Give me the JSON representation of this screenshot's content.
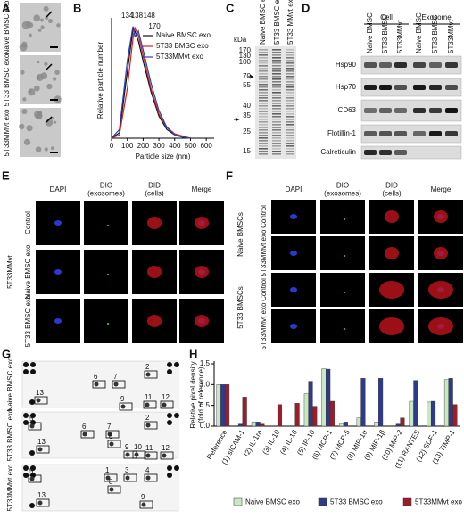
{
  "panels": {
    "A": {
      "letter": "A",
      "rows": [
        "Naive BMSC exo",
        "5T33 BMSC exo",
        "5T33MMvt exo"
      ]
    },
    "C": {
      "letter": "C",
      "unit": "kDa",
      "lanes": [
        "Naive BMSC exo",
        "5T33 BMSC exo",
        "5T33 MMvt exo"
      ],
      "markers": [
        170,
        130,
        100,
        70,
        55,
        40,
        35,
        25,
        15
      ]
    },
    "D": {
      "letter": "D",
      "groups": [
        "Cell",
        "Exosome"
      ],
      "lanes": [
        "Naive BMSC",
        "5T33 BMSC",
        "5T33MMvt",
        "Naive BMSC",
        "5T33 BMSC",
        "5T33MMvt"
      ],
      "proteins": [
        "Hsp90",
        "Hsp70",
        "CD63",
        "Flotillin-1",
        "Calreticulin"
      ]
    },
    "E": {
      "letter": "E",
      "columns": [
        [
          "DAPI"
        ],
        [
          "DIO",
          "(exosomes)"
        ],
        [
          "DID",
          "(cells)"
        ],
        [
          "Merge"
        ]
      ],
      "group": "5T33MMvt",
      "rows": [
        "Control",
        "Naive BMSC exo",
        "5T33 BMSC exo"
      ]
    },
    "F": {
      "letter": "F",
      "columns": [
        [
          "DAPI"
        ],
        [
          "DIO",
          "(exosomes)"
        ],
        [
          "DID",
          "(cells)"
        ],
        [
          "Merge"
        ]
      ],
      "groups": [
        "Naive BMSCs",
        "5T33 BMSCs"
      ],
      "rows": [
        "Control",
        "5T33MMvt exo",
        "Control",
        "5T33MMvt exo"
      ]
    },
    "G": {
      "letter": "G",
      "rows": [
        {
          "name": "Naive BMSC exo",
          "spots": [
            "13",
            "6",
            "7",
            "9",
            "2",
            "11",
            "12"
          ]
        },
        {
          "name": "5T33 BMSC exo",
          "spots": [
            "5",
            "13",
            "6",
            "7",
            "8",
            "9",
            "10",
            "2",
            "11",
            "12"
          ]
        },
        {
          "name": "5T33MMvt exo",
          "spots": [
            "5",
            "13",
            "1",
            "3",
            "8",
            "4",
            "9"
          ]
        }
      ]
    }
  },
  "chart_data": [
    {
      "type": "line",
      "panel_label": "B",
      "ylabel": "Relative particle number",
      "xlabel": "Particle size (nm)",
      "x": [
        0,
        50,
        100,
        134,
        138,
        148,
        170,
        200,
        250,
        300,
        350,
        400,
        450,
        500
      ],
      "xlim": [
        0,
        650
      ],
      "xticks": [
        0,
        100,
        200,
        300,
        400,
        500,
        600
      ],
      "ylim": [
        0,
        1.05
      ],
      "series": [
        {
          "name": "Naive BMSC exo",
          "color": "#111111",
          "values": [
            0,
            0.05,
            0.6,
            0.97,
            1.0,
            0.97,
            0.88,
            0.7,
            0.42,
            0.2,
            0.08,
            0.03,
            0.01,
            0
          ]
        },
        {
          "name": "5T33 BMSC exo",
          "color": "#d42020",
          "values": [
            0,
            0.03,
            0.45,
            0.88,
            0.93,
            1.0,
            0.93,
            0.75,
            0.45,
            0.22,
            0.1,
            0.04,
            0.02,
            0
          ]
        },
        {
          "name": "5T33MMvt exo",
          "color": "#2a3fb0",
          "values": [
            0,
            0.08,
            0.7,
            1.0,
            0.99,
            0.92,
            0.97,
            0.8,
            0.5,
            0.25,
            0.1,
            0.03,
            0.01,
            0
          ]
        }
      ],
      "peak_labels": [
        {
          "value": 134,
          "color": "#2a3fb0"
        },
        {
          "value": 138,
          "color": "#111111"
        },
        {
          "value": 148,
          "color": "#d42020"
        },
        {
          "value": 170,
          "color": "#5a3fb0"
        }
      ]
    },
    {
      "type": "bar",
      "panel_label": "H",
      "ylabel": [
        "Relative pixel density",
        "(fold of reference)"
      ],
      "categories": [
        "Reference",
        "(1) sICAM-1",
        "(2) IL-1ra",
        "(3) IL-10",
        "(4) IL-16",
        "(5) IP-10",
        "(6) MCP-1",
        "(7) MCP-5",
        "(8) MIP-1α",
        "(9) MIP-1β",
        "(10) MIP-2",
        "(11) RANTES",
        "(12) SDF-1",
        "(13) TIMP-1"
      ],
      "ylim": [
        0,
        1.5
      ],
      "yticks": [
        {
          "value": 0,
          "label": "0.0"
        },
        {
          "value": 0.5,
          "label": "0.5"
        },
        {
          "value": 1,
          "label": "1.0"
        },
        {
          "value": 1.5,
          "label": "1.5"
        }
      ],
      "series": [
        {
          "name": "Naive BMSC exo",
          "color": "#c9e8c2",
          "values": [
            1.0,
            0,
            0.1,
            0,
            0,
            0.78,
            1.38,
            0.05,
            0.2,
            0.1,
            0,
            0.6,
            0.58,
            1.12
          ]
        },
        {
          "name": "5T33 BMSC exo",
          "color": "#2e3a8c",
          "values": [
            1.0,
            0.05,
            0.1,
            0,
            0,
            1.08,
            1.37,
            0.1,
            1.15,
            1.15,
            0.05,
            1.1,
            0.6,
            1.15
          ]
        },
        {
          "name": "5T33MMvt exo",
          "color": "#9b1c2a",
          "values": [
            1.0,
            0.7,
            0.05,
            0.52,
            0.55,
            0.48,
            0.6,
            0,
            0,
            0,
            0.2,
            0,
            0,
            0.52
          ]
        }
      ]
    }
  ]
}
